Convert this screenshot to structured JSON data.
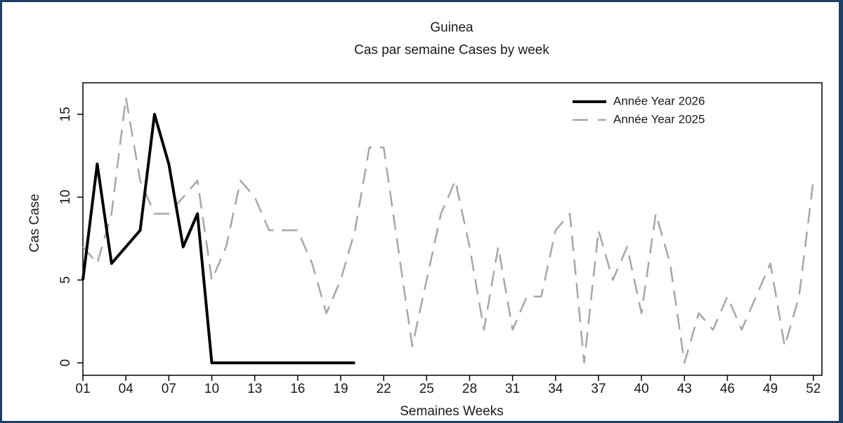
{
  "chart_data": {
    "type": "line",
    "title": "Guinea",
    "subtitle": "Cas par semaine Cases by week",
    "xlabel": "Semaines Weeks",
    "ylabel": "Cas Case",
    "x": [
      1,
      2,
      3,
      4,
      5,
      6,
      7,
      8,
      9,
      10,
      11,
      12,
      13,
      14,
      15,
      16,
      17,
      18,
      19,
      20,
      21,
      22,
      23,
      24,
      25,
      26,
      27,
      28,
      29,
      30,
      31,
      32,
      33,
      34,
      35,
      36,
      37,
      38,
      39,
      40,
      41,
      42,
      43,
      44,
      45,
      46,
      47,
      48,
      49,
      50,
      51,
      52
    ],
    "series": [
      {
        "name": "Année Year 2026",
        "color": "#000000",
        "dash": "solid",
        "values": [
          5,
          12,
          6,
          7,
          8,
          15,
          12,
          7,
          9,
          0,
          0,
          0,
          0,
          0,
          0,
          0,
          0,
          0,
          0,
          0,
          null,
          null,
          null,
          null,
          null,
          null,
          null,
          null,
          null,
          null,
          null,
          null,
          null,
          null,
          null,
          null,
          null,
          null,
          null,
          null,
          null,
          null,
          null,
          null,
          null,
          null,
          null,
          null,
          null,
          null,
          null,
          null
        ]
      },
      {
        "name": "Année Year 2025",
        "color": "#a6a6a6",
        "dash": "dashed",
        "values": [
          7,
          6,
          9,
          16,
          11,
          9,
          9,
          10,
          11,
          5,
          7,
          11,
          10,
          8,
          8,
          8,
          6,
          3,
          5,
          8,
          13,
          13,
          7,
          1,
          5,
          9,
          11,
          7,
          2,
          7,
          2,
          4,
          4,
          8,
          9,
          0,
          8,
          5,
          7,
          3,
          9,
          6,
          0,
          3,
          2,
          4,
          2,
          4,
          6,
          1,
          4,
          11
        ]
      }
    ],
    "xlim": [
      1,
      52.6
    ],
    "ylim": [
      -0.75,
      16.9
    ],
    "xticks": [
      {
        "value": 1,
        "label": "01"
      },
      {
        "value": 4,
        "label": "04"
      },
      {
        "value": 7,
        "label": "07"
      },
      10,
      13,
      16,
      19,
      22,
      25,
      28,
      31,
      34,
      37,
      40,
      43,
      46,
      49,
      52
    ],
    "yticks": [
      0,
      5,
      10,
      15
    ],
    "legend": "top-right"
  }
}
